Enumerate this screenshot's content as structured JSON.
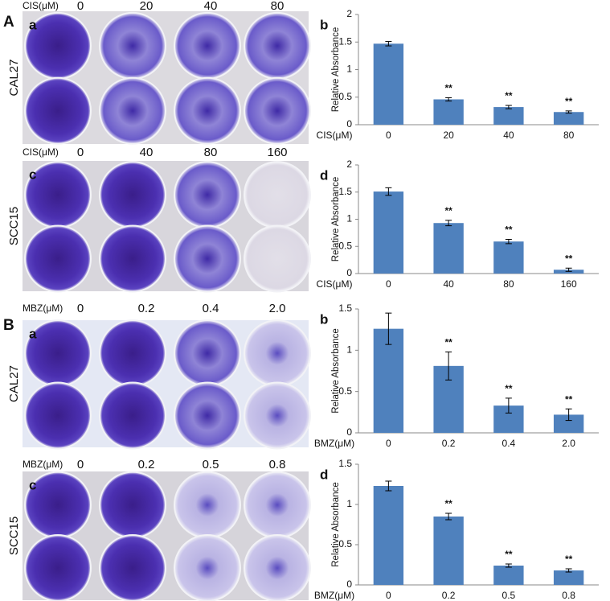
{
  "figure_labels": [
    "A",
    "B"
  ],
  "panels": [
    {
      "letter": "a",
      "unit": "CIS(μM)",
      "doses": [
        "0",
        "20",
        "40",
        "80"
      ],
      "cell_line": "CAL27"
    },
    {
      "letter": "c",
      "unit": "CIS(μM)",
      "doses": [
        "0",
        "40",
        "80",
        "160"
      ],
      "cell_line": "SCC15"
    },
    {
      "letter": "a",
      "unit": "MBZ(μM)",
      "doses": [
        "0",
        "0.2",
        "0.4",
        "2.0"
      ],
      "cell_line": "CAL27"
    },
    {
      "letter": "c",
      "unit": "MBZ(μM)",
      "doses": [
        "0",
        "0.2",
        "0.5",
        "0.8"
      ],
      "cell_line": "SCC15"
    }
  ],
  "chart_data": [
    {
      "type": "bar",
      "panel_letter": "b",
      "y_label": "Relative Absorbance",
      "x_label": "CIS(μM)",
      "categories": [
        "0",
        "20",
        "40",
        "80"
      ],
      "values": [
        1.47,
        0.46,
        0.32,
        0.23
      ],
      "errors": [
        0.04,
        0.03,
        0.03,
        0.02
      ],
      "significance": [
        null,
        "**",
        "**",
        "**"
      ],
      "color": "#4f81bd",
      "ylim": [
        0,
        2
      ],
      "yticks": [
        0,
        0.5,
        1,
        1.5,
        2
      ]
    },
    {
      "type": "bar",
      "panel_letter": "d",
      "y_label": "Relative Absorbance",
      "x_label": "CIS(μM)",
      "categories": [
        "0",
        "40",
        "80",
        "160"
      ],
      "values": [
        1.51,
        0.93,
        0.59,
        0.07
      ],
      "errors": [
        0.07,
        0.05,
        0.04,
        0.03
      ],
      "significance": [
        null,
        "**",
        "**",
        "**"
      ],
      "color": "#4f81bd",
      "ylim": [
        0,
        2
      ],
      "yticks": [
        0,
        0.5,
        1,
        1.5,
        2
      ]
    },
    {
      "type": "bar",
      "panel_letter": "b",
      "y_label": "Relative Absorbance",
      "x_label": "BMZ(μM)",
      "categories": [
        "0",
        "0.2",
        "0.4",
        "2.0"
      ],
      "values": [
        1.26,
        0.81,
        0.33,
        0.22
      ],
      "errors": [
        0.19,
        0.17,
        0.09,
        0.07
      ],
      "significance": [
        null,
        "**",
        "**",
        "**"
      ],
      "color": "#4f81bd",
      "ylim": [
        0,
        1.5
      ],
      "yticks": [
        0,
        0.5,
        1,
        1.5
      ]
    },
    {
      "type": "bar",
      "panel_letter": "d",
      "y_label": "Relative Absorbance",
      "x_label": "BMZ(μM)",
      "categories": [
        "0",
        "0.2",
        "0.5",
        "0.8"
      ],
      "values": [
        1.23,
        0.85,
        0.24,
        0.18
      ],
      "errors": [
        0.06,
        0.04,
        0.02,
        0.02
      ],
      "significance": [
        null,
        "**",
        "**",
        "**"
      ],
      "color": "#4f81bd",
      "ylim": [
        0,
        1.5
      ],
      "yticks": [
        0,
        0.5,
        1,
        1.5
      ]
    }
  ]
}
